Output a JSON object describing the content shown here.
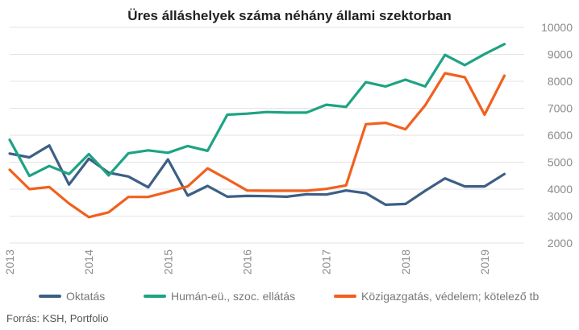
{
  "chart_data": {
    "type": "line",
    "title": "Üres álláshelyek száma néhány állami szektorban",
    "x": [
      "2013 Q1",
      "2013 Q2",
      "2013 Q3",
      "2013 Q4",
      "2014 Q1",
      "2014 Q2",
      "2014 Q3",
      "2014 Q4",
      "2015 Q1",
      "2015 Q2",
      "2015 Q3",
      "2015 Q4",
      "2016 Q1",
      "2016 Q2",
      "2016 Q3",
      "2016 Q4",
      "2017 Q1",
      "2017 Q2",
      "2017 Q3",
      "2017 Q4",
      "2018 Q1",
      "2018 Q2",
      "2018 Q3",
      "2018 Q4",
      "2019 Q1",
      "2019 Q2"
    ],
    "xticks": [
      {
        "label": "2013",
        "at": 0
      },
      {
        "label": "2014",
        "at": 4
      },
      {
        "label": "2015",
        "at": 8
      },
      {
        "label": "2016",
        "at": 12
      },
      {
        "label": "2017",
        "at": 16
      },
      {
        "label": "2018",
        "at": 20
      },
      {
        "label": "2019",
        "at": 24
      }
    ],
    "yticks": [
      2000,
      3000,
      4000,
      5000,
      6000,
      7000,
      8000,
      9000,
      10000
    ],
    "ylim": [
      2000,
      10000
    ],
    "grid": true,
    "legend_position": "bottom",
    "series": [
      {
        "name": "Oktatás",
        "color": "#3d5f86",
        "values": [
          5320,
          5180,
          5620,
          4170,
          5130,
          4610,
          4470,
          4070,
          5100,
          3760,
          4120,
          3720,
          3750,
          3740,
          3720,
          3810,
          3800,
          3950,
          3850,
          3420,
          3450,
          3940,
          4400,
          4100,
          4100,
          4560
        ]
      },
      {
        "name": "Humán-eü., szoc. ellátás",
        "color": "#1ea383",
        "values": [
          5830,
          4490,
          4860,
          4560,
          5300,
          4510,
          5330,
          5440,
          5350,
          5600,
          5420,
          6760,
          6800,
          6860,
          6840,
          6840,
          7130,
          7050,
          7970,
          7810,
          8060,
          7810,
          8980,
          8600,
          9010,
          9380
        ]
      },
      {
        "name": "Közigazgatás, védelem; kötelező tb",
        "color": "#f2601d",
        "values": [
          4720,
          4000,
          4080,
          3470,
          2960,
          3140,
          3710,
          3710,
          3900,
          4100,
          4770,
          4370,
          3950,
          3940,
          3940,
          3940,
          4010,
          4140,
          6410,
          6460,
          6220,
          7110,
          8300,
          8150,
          6760,
          8210
        ]
      }
    ]
  },
  "source": "Forrás: KSH, Portfolio"
}
